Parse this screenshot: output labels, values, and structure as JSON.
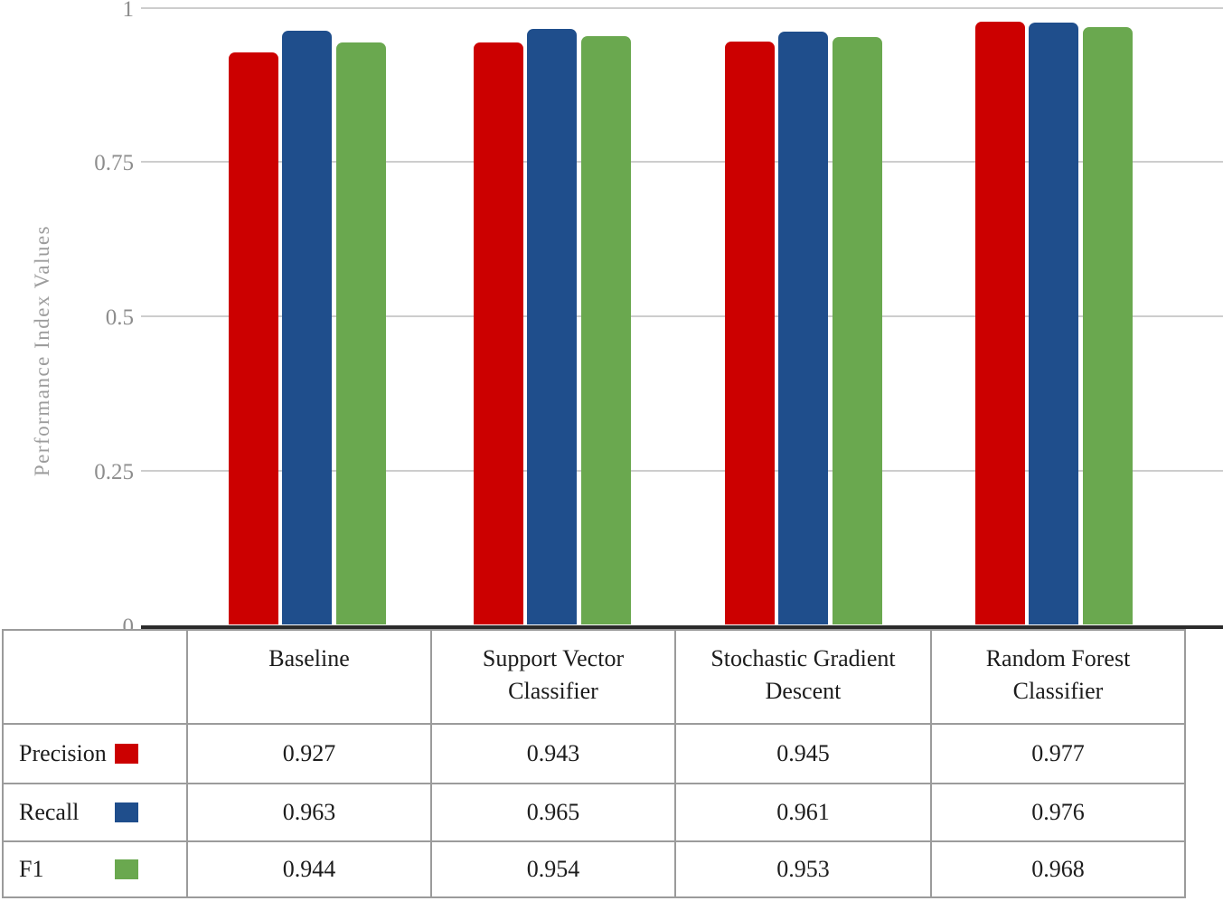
{
  "chart_data": {
    "type": "bar",
    "title": "",
    "xlabel": "",
    "ylabel": "Performance Index Values",
    "ylim": [
      0,
      1
    ],
    "grid": true,
    "legend_position": "table-below-chart-left-column",
    "yticks": [
      {
        "label": "1",
        "value": 1
      },
      {
        "label": "0.75",
        "value": 0.75
      },
      {
        "label": "0.5",
        "value": 0.5
      },
      {
        "label": "0.25",
        "value": 0.25
      },
      {
        "label": "0",
        "value": 0
      }
    ],
    "categories": [
      "Baseline",
      "Support Vector Classifier",
      "Stochastic Gradient Descent",
      "Random Forest Classifier"
    ],
    "series": [
      {
        "name": "Precision",
        "color": "#cc0000",
        "values": [
          0.927,
          0.943,
          0.945,
          0.977
        ]
      },
      {
        "name": "Recall",
        "color": "#1f4e8c",
        "values": [
          0.963,
          0.965,
          0.961,
          0.976
        ]
      },
      {
        "name": "F1",
        "color": "#6aa84f",
        "values": [
          0.944,
          0.954,
          0.953,
          0.968
        ]
      }
    ]
  },
  "table": {
    "headers": [
      "Baseline",
      "Support Vector Classifier",
      "Stochastic Gradient Descent",
      "Random Forest Classifier"
    ],
    "rows": [
      {
        "label": "Precision",
        "swatch_color": "#cc0000",
        "values": [
          "0.927",
          "0.943",
          "0.945",
          "0.977"
        ]
      },
      {
        "label": "Recall",
        "swatch_color": "#1f4e8c",
        "values": [
          "0.963",
          "0.965",
          "0.961",
          "0.976"
        ]
      },
      {
        "label": "F1",
        "swatch_color": "#6aa84f",
        "values": [
          "0.944",
          "0.954",
          "0.953",
          "0.968"
        ]
      }
    ]
  },
  "colors": {
    "gridline": "#cdcdcd",
    "axis_line": "#2b2b2b",
    "table_border": "#9b9b9b",
    "tick_text": "#8d8d8d",
    "axis_title_text": "#9c9c9c",
    "table_text": "#1c1c1c"
  }
}
